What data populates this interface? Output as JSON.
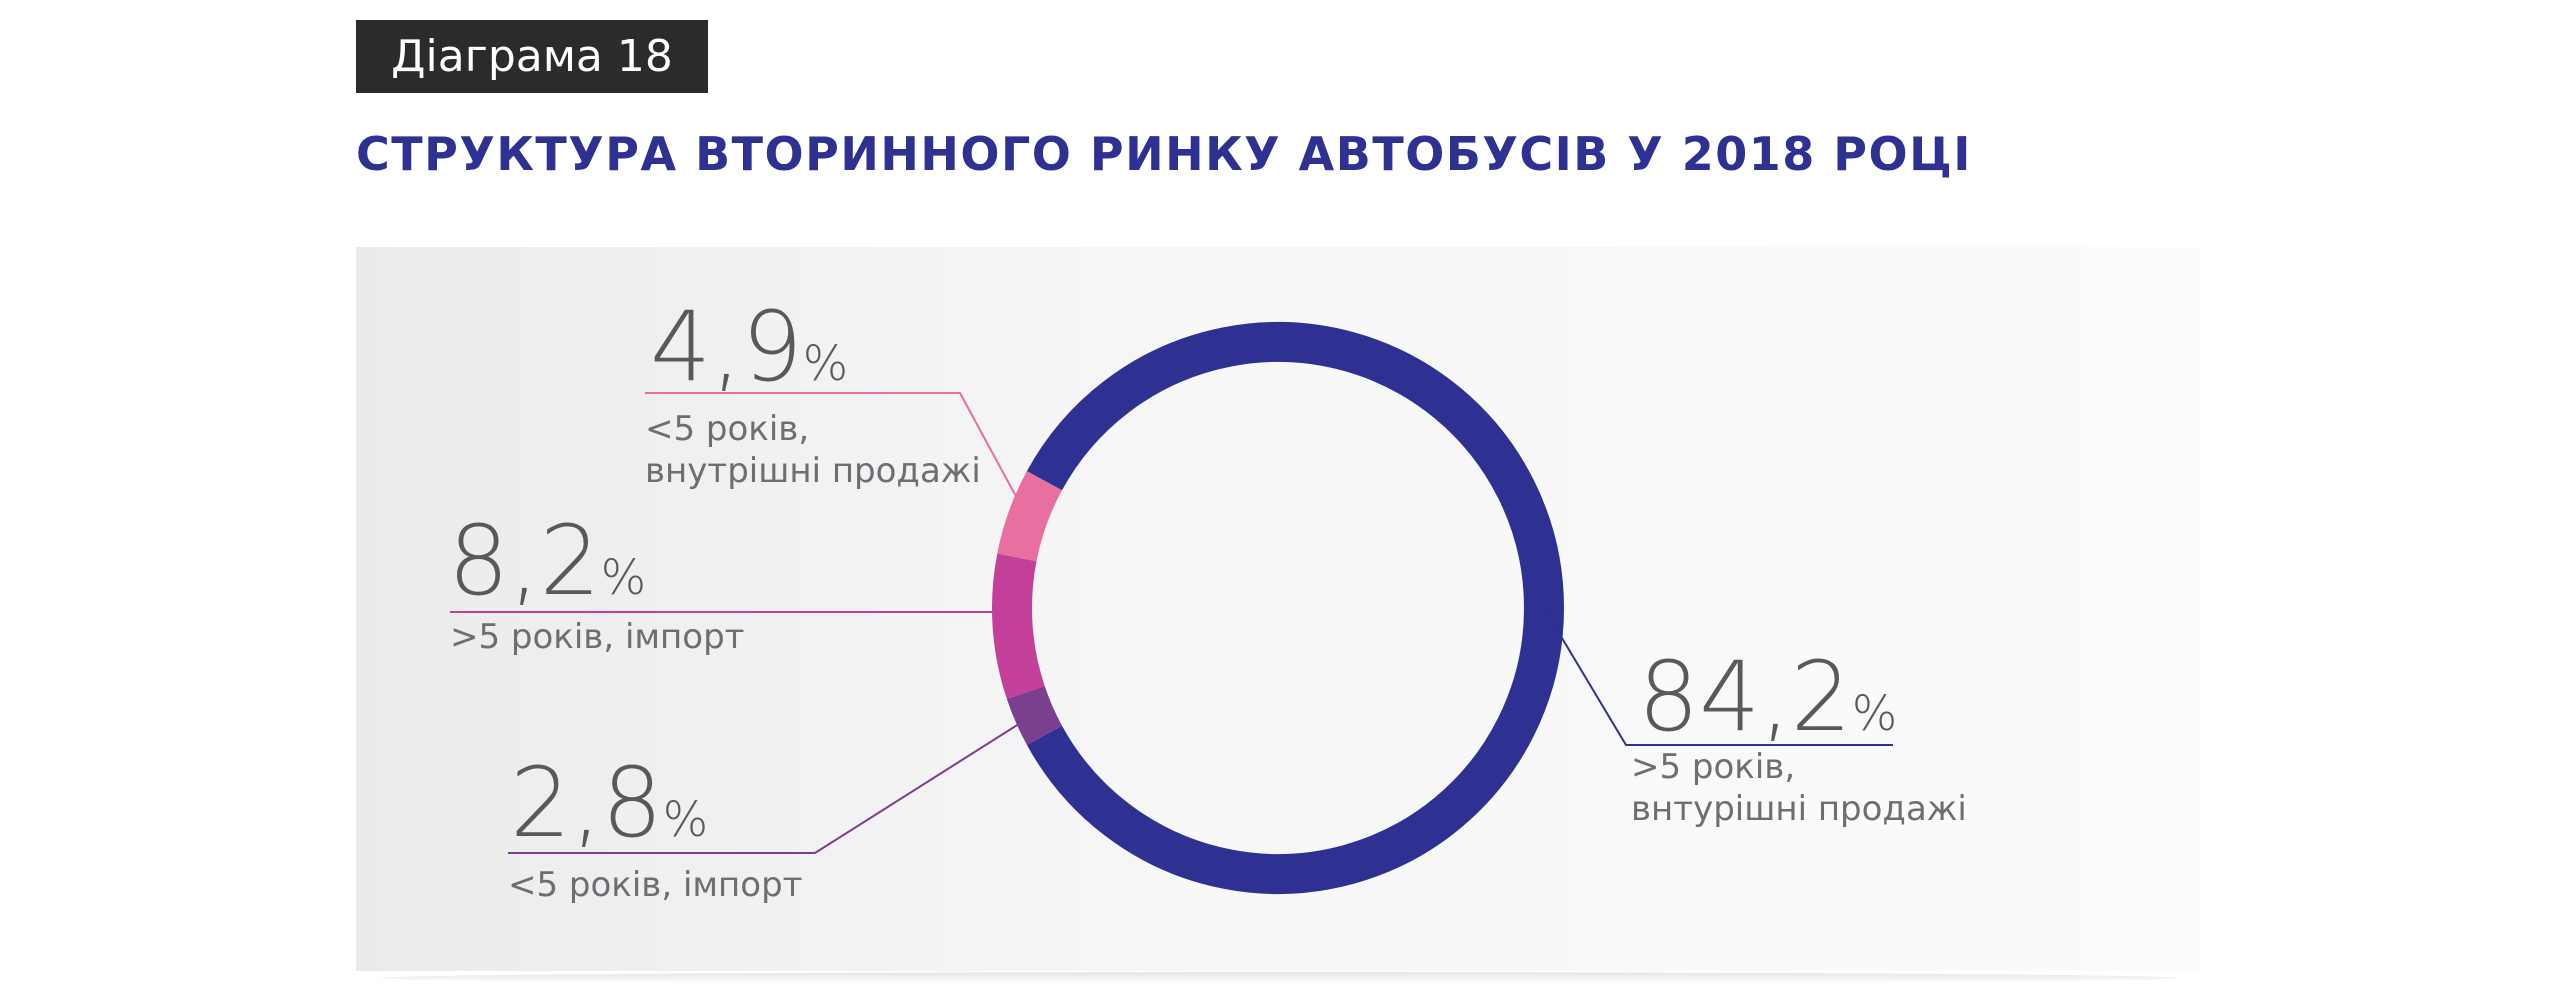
{
  "badge": "Діаграма 18",
  "title": "СТРУКТУРА ВТОРИННОГО РИНКУ АВТОБУСІВ У 2018 РОЦІ",
  "chart_data": {
    "type": "pie",
    "style": "donut",
    "unit": "%",
    "slices": [
      {
        "value": 84.2,
        "value_text": "84,2",
        "label_lines": [
          ">5 років,",
          "внтурішні продажі"
        ],
        "color": "#2e3192"
      },
      {
        "value": 2.8,
        "value_text": "2,8",
        "label_lines": [
          "<5 років, імпорт"
        ],
        "color": "#7b3f8f"
      },
      {
        "value": 8.2,
        "value_text": "8,2",
        "label_lines": [
          ">5 років, імпорт"
        ],
        "color": "#c2409a"
      },
      {
        "value": 4.9,
        "value_text": "4,9",
        "label_lines": [
          "<5 років,",
          "внутрішні продажі"
        ],
        "color": "#e86fa0"
      }
    ]
  }
}
